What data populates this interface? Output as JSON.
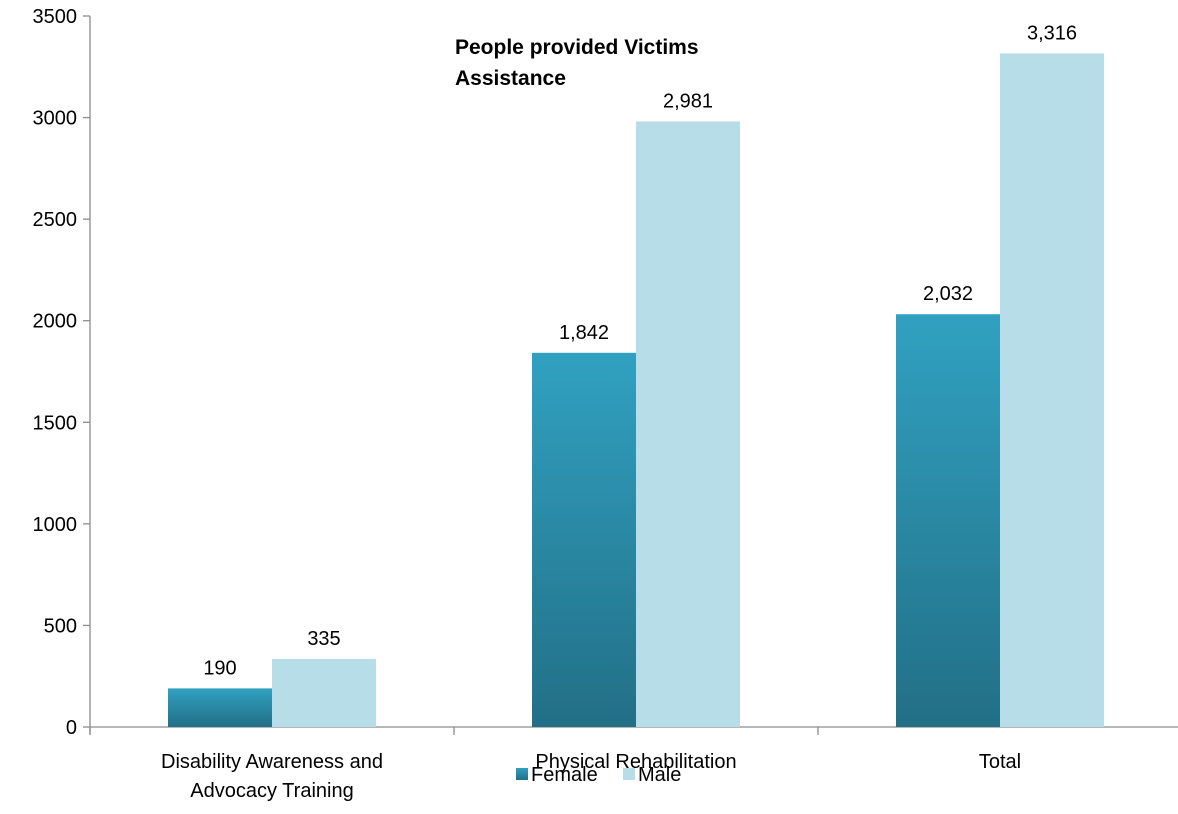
{
  "chart_data": {
    "type": "bar",
    "title_lines": [
      "People provided Victims",
      "Assistance"
    ],
    "categories": [
      [
        "Disability Awareness and",
        "Advocacy Training"
      ],
      [
        "Physical Rehabilitation"
      ],
      [
        "Total"
      ]
    ],
    "series": [
      {
        "name": "Female",
        "values": [
          190,
          1842,
          2032
        ],
        "labels": [
          "190",
          "1,842",
          "2,032"
        ],
        "color_top": "#31a1c1",
        "color_bottom": "#226f86"
      },
      {
        "name": "Male",
        "values": [
          335,
          2981,
          3316
        ],
        "labels": [
          "335",
          "2,981",
          "3,316"
        ],
        "color_top": "#b7dde8",
        "color_bottom": "#b7dde8"
      }
    ],
    "ylim": [
      0,
      3500
    ],
    "yticks": [
      0,
      500,
      1000,
      1500,
      2000,
      2500,
      3000,
      3500
    ],
    "xlabel": "",
    "ylabel": "",
    "grid": false,
    "legend_position": "bottom"
  }
}
